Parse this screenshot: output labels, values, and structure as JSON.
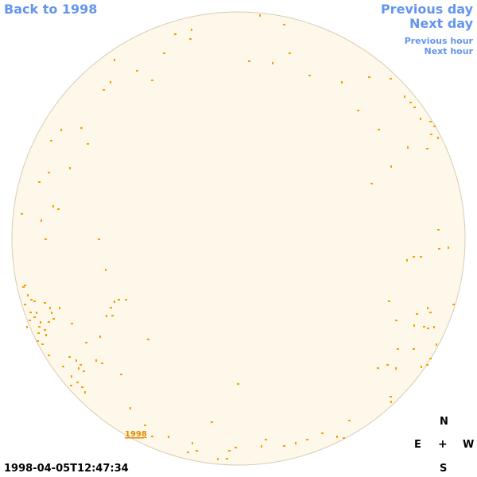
{
  "nav": {
    "back_label": "Back to 1998",
    "prev_day_label": "Previous day",
    "next_day_label": "Next day",
    "prev_hour_label": "Previous hour",
    "next_hour_label": "Next hour"
  },
  "sky": {
    "marker_label": "1998",
    "timestamp": "1998-04-05T12:47:34"
  },
  "compass": {
    "north": "N",
    "east": "E",
    "center": "+",
    "west": "W",
    "south": "S"
  },
  "colors": {
    "link": "#6495ed",
    "sky_fill": "#fdf8ea",
    "sky_border": "#d8ccb4",
    "meteor": "#f5a000"
  }
}
